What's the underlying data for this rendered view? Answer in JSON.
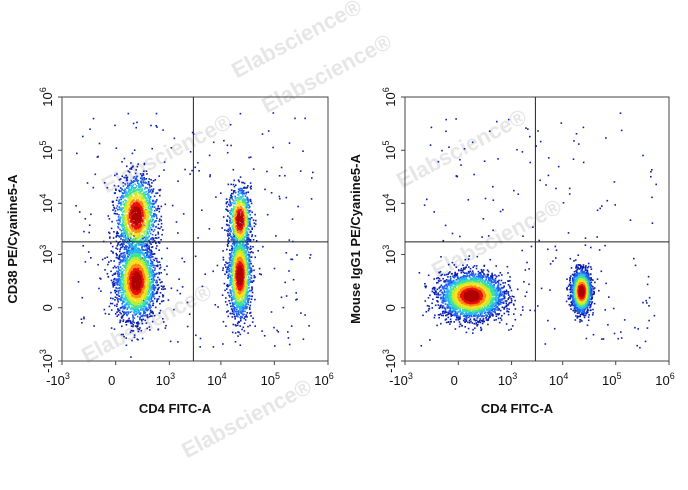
{
  "watermark": "Elabscience",
  "watermark_mark": "®",
  "colors": {
    "density": [
      "#0a1fb0",
      "#1f5ff0",
      "#25b8f0",
      "#3fe0a0",
      "#b8f030",
      "#ffe020",
      "#ff8a10",
      "#e81010",
      "#b00000"
    ],
    "gate_line": "#222222",
    "frame": "#444444"
  },
  "chart_data": [
    {
      "type": "scatter",
      "subtype": "flow-cytometry-density-dot-plot",
      "xlabel": "CD4 FITC-A",
      "ylabel": "CD38 PE/Cyanine5-A",
      "xscale": "biexponential",
      "yscale": "biexponential",
      "xlim": [
        -1000,
        1000000
      ],
      "ylim": [
        -1000,
        1000000
      ],
      "x_ticks": [
        {
          "base": "-10",
          "exp": "3"
        },
        {
          "base": "0",
          "exp": ""
        },
        {
          "base": "10",
          "exp": "3"
        },
        {
          "base": "10",
          "exp": "4"
        },
        {
          "base": "10",
          "exp": "5"
        },
        {
          "base": "10",
          "exp": "6"
        }
      ],
      "y_ticks": [
        {
          "base": "-10",
          "exp": "3"
        },
        {
          "base": "0",
          "exp": ""
        },
        {
          "base": "10",
          "exp": "3"
        },
        {
          "base": "10",
          "exp": "4"
        },
        {
          "base": "10",
          "exp": "5"
        },
        {
          "base": "10",
          "exp": "6"
        }
      ],
      "gate": {
        "x": 3000,
        "y": 1800
      },
      "populations": [
        {
          "x": 150,
          "y": 250,
          "sx": 0.28,
          "sy": 0.55,
          "n": 2600
        },
        {
          "x": 150,
          "y": 6000,
          "sx": 0.28,
          "sy": 0.55,
          "n": 1700
        },
        {
          "x": 22000,
          "y": 350,
          "sx": 0.16,
          "sy": 0.6,
          "n": 1700
        },
        {
          "x": 22000,
          "y": 5000,
          "sx": 0.16,
          "sy": 0.45,
          "n": 800
        }
      ],
      "noise_points": 260
    },
    {
      "type": "scatter",
      "subtype": "flow-cytometry-density-dot-plot",
      "xlabel": "CD4 FITC-A",
      "ylabel": "Mouse IgG1 PE/Cyanine5-A",
      "xscale": "biexponential",
      "yscale": "biexponential",
      "xlim": [
        -1000,
        1000000
      ],
      "ylim": [
        -1000,
        1000000
      ],
      "x_ticks": [
        {
          "base": "-10",
          "exp": "3"
        },
        {
          "base": "0",
          "exp": ""
        },
        {
          "base": "10",
          "exp": "3"
        },
        {
          "base": "10",
          "exp": "4"
        },
        {
          "base": "10",
          "exp": "5"
        },
        {
          "base": "10",
          "exp": "6"
        }
      ],
      "y_ticks": [
        {
          "base": "-10",
          "exp": "3"
        },
        {
          "base": "0",
          "exp": ""
        },
        {
          "base": "10",
          "exp": "3"
        },
        {
          "base": "10",
          "exp": "4"
        },
        {
          "base": "10",
          "exp": "5"
        },
        {
          "base": "10",
          "exp": "6"
        }
      ],
      "gate": {
        "x": 3000,
        "y": 1800
      },
      "populations": [
        {
          "x": 80,
          "y": 80,
          "sx": 0.45,
          "sy": 0.32,
          "n": 3200
        },
        {
          "x": 22000,
          "y": 120,
          "sx": 0.14,
          "sy": 0.3,
          "n": 1700
        }
      ],
      "noise_points": 180
    }
  ]
}
